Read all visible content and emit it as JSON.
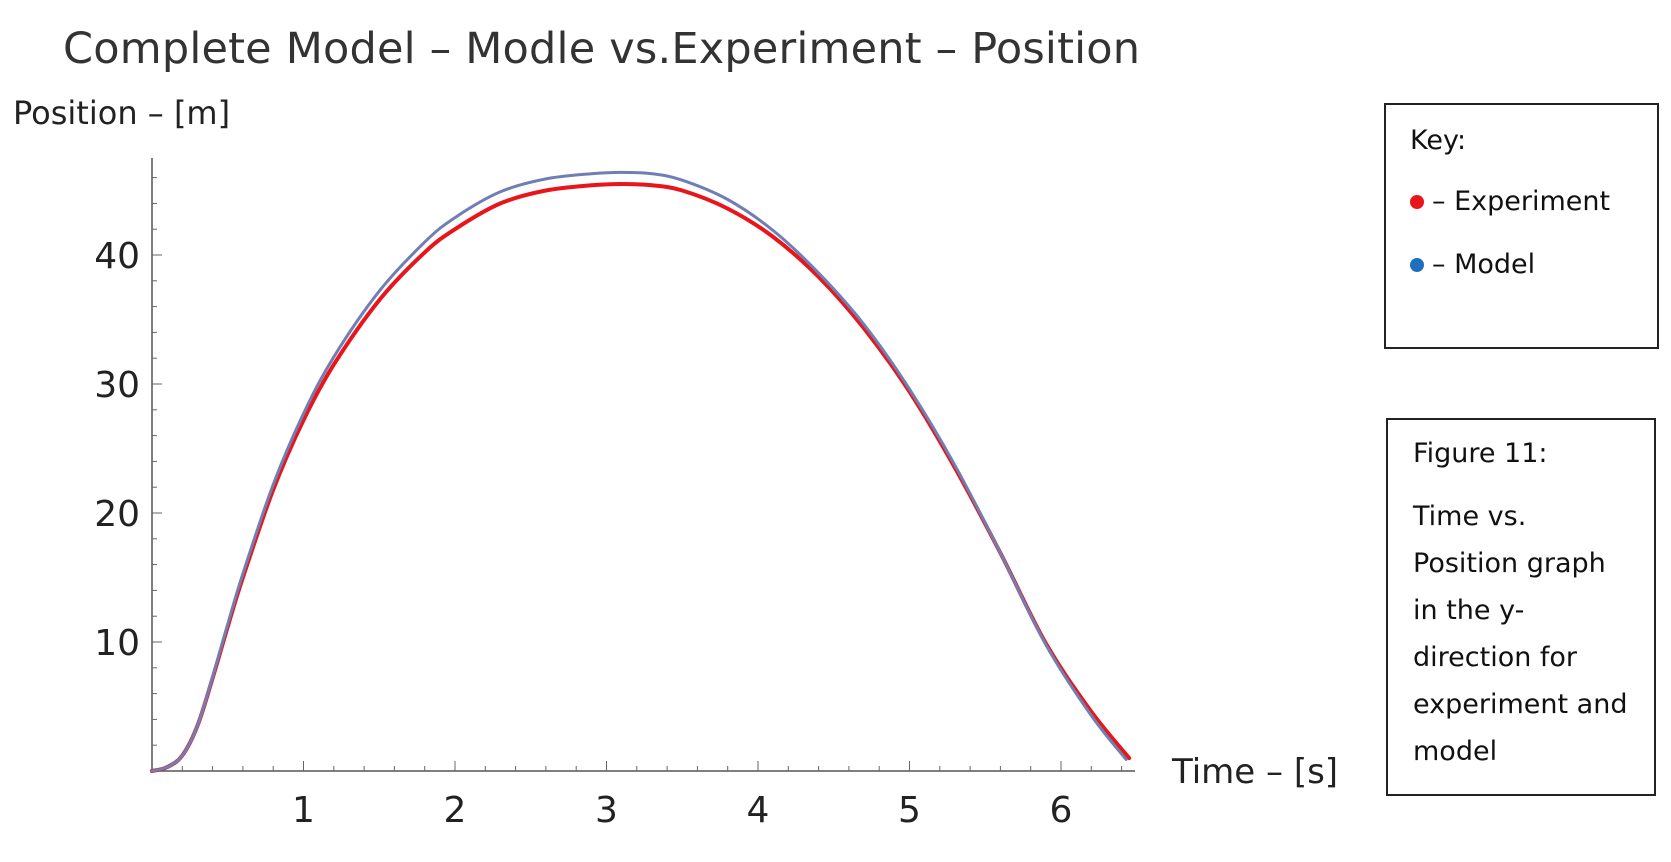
{
  "chart_data": {
    "type": "line",
    "title": "Complete Model – Modle vs.Experiment – Position",
    "xlabel": "Time  –  [s]",
    "ylabel": "Position  –  [m]",
    "xlim": [
      0,
      6.5
    ],
    "ylim": [
      0,
      47
    ],
    "x_ticks": [
      1,
      2,
      3,
      4,
      5,
      6
    ],
    "y_ticks": [
      10,
      20,
      30,
      40
    ],
    "grid": false,
    "legend": "right",
    "series": [
      {
        "name": "Experiment",
        "color": "#e8151b",
        "x": [
          0,
          0.1,
          0.2,
          0.3,
          0.4,
          0.5,
          0.6,
          0.8,
          1.0,
          1.2,
          1.5,
          1.8,
          2.0,
          2.3,
          2.6,
          2.9,
          3.1,
          3.3,
          3.5,
          3.8,
          4.1,
          4.4,
          4.7,
          5.0,
          5.3,
          5.6,
          5.9,
          6.2,
          6.45
        ],
        "y": [
          0,
          0.3,
          1.2,
          3.5,
          7.2,
          11.2,
          15.0,
          21.8,
          27.2,
          31.5,
          36.5,
          40.2,
          42.0,
          44.0,
          45.0,
          45.4,
          45.5,
          45.4,
          45.0,
          43.6,
          41.4,
          38.3,
          34.3,
          29.4,
          23.5,
          16.9,
          9.9,
          4.6,
          1.0
        ]
      },
      {
        "name": "Model",
        "color": "#6f7fb3",
        "x": [
          0,
          0.1,
          0.2,
          0.3,
          0.4,
          0.5,
          0.6,
          0.8,
          1.0,
          1.2,
          1.5,
          1.8,
          2.0,
          2.3,
          2.6,
          2.9,
          3.1,
          3.3,
          3.5,
          3.8,
          4.1,
          4.4,
          4.7,
          5.0,
          5.3,
          5.6,
          5.9,
          6.2,
          6.43
        ],
        "y": [
          0,
          0.3,
          1.2,
          3.5,
          7.3,
          11.4,
          15.3,
          22.2,
          27.7,
          32.1,
          37.2,
          41.0,
          42.9,
          44.9,
          45.9,
          46.3,
          46.4,
          46.3,
          45.8,
          44.3,
          41.9,
          38.6,
          34.6,
          29.6,
          23.7,
          16.9,
          9.8,
          4.3,
          0.9
        ]
      }
    ]
  },
  "key": {
    "title": "Key:",
    "items": [
      {
        "label": "– Experiment",
        "color": "#e8151b"
      },
      {
        "label": "– Model",
        "color": "#1f6fc0"
      }
    ]
  },
  "caption": {
    "title": "Figure 11:",
    "body": "Time vs. Position graph in the y-direction for experiment and model"
  }
}
